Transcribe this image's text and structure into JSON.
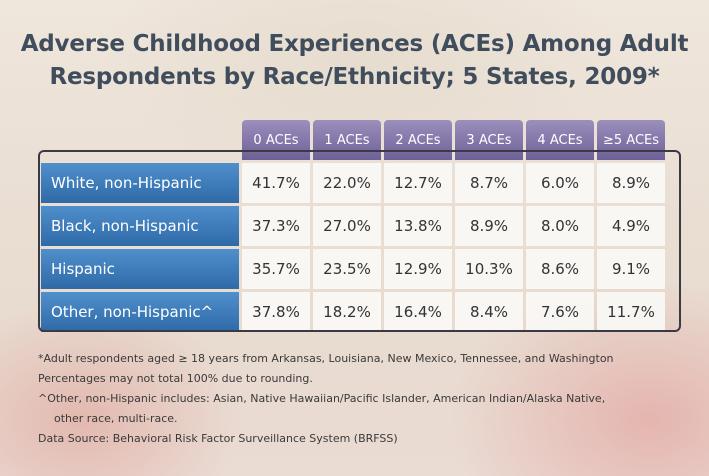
{
  "title": {
    "lines": [
      "Adverse Childhood Experiences (ACEs) Among Adult",
      "Respondents by Race/Ethnicity; 5 States, 2009*"
    ]
  },
  "table": {
    "columns": [
      "0 ACEs",
      "1 ACEs",
      "2 ACEs",
      "3 ACEs",
      "4 ACEs",
      "≥5 ACEs"
    ],
    "rows": [
      {
        "label": "White, non-Hispanic",
        "cells": [
          "41.7%",
          "22.0%",
          "12.7%",
          "8.7%",
          "6.0%",
          "8.9%"
        ]
      },
      {
        "label": "Black, non-Hispanic",
        "cells": [
          "37.3%",
          "27.0%",
          "13.8%",
          "8.9%",
          "8.0%",
          "4.9%"
        ]
      },
      {
        "label": "Hispanic",
        "cells": [
          "35.7%",
          "23.5%",
          "12.9%",
          "10.3%",
          "8.6%",
          "9.1%"
        ]
      },
      {
        "label": "Other, non-Hispanic^",
        "cells": [
          "37.8%",
          "18.2%",
          "16.4%",
          "8.4%",
          "7.6%",
          "11.7%"
        ]
      }
    ]
  },
  "footnotes": [
    "*Adult respondents aged ≥ 18 years from Arkansas, Louisiana, New Mexico, Tennessee, and Washington",
    "Percentages may not total 100% due to rounding.",
    "^Other, non-Hispanic includes: Asian, Native Hawaiian/Pacific Islander, American Indian/Alaska Native, other race, multi-race.",
    "Data Source: Behavioral Risk Factor Surveillance System (BRFSS)"
  ]
}
